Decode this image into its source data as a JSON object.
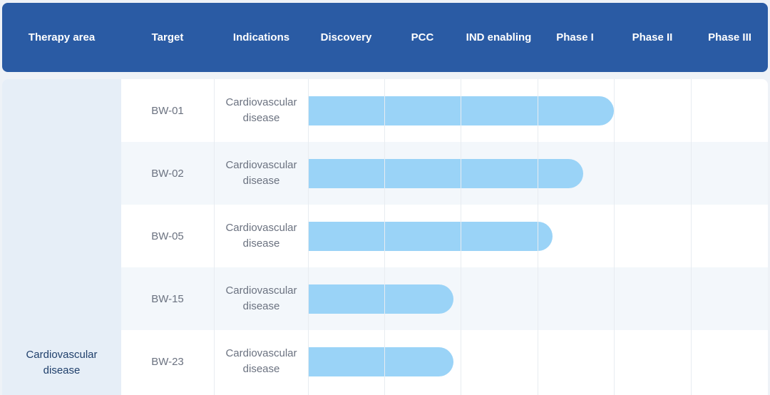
{
  "header": {
    "columns": [
      "Therapy area",
      "Target",
      "Indications",
      "Discovery",
      "PCC",
      "IND enabling",
      "Phase I",
      "Phase II",
      "Phase III"
    ]
  },
  "therapy_area": "Cardiovascular\ndisease",
  "colors": {
    "header_bg": "#2a5ba4",
    "bar": "#9ad3f7",
    "area_bg": "#e6eef7"
  },
  "stages": [
    "Discovery",
    "PCC",
    "IND enabling",
    "Phase I",
    "Phase II",
    "Phase III"
  ],
  "rows": [
    {
      "target": "BW-01",
      "indication": "Cardiovascular disease",
      "progress_stages": 4.0
    },
    {
      "target": "BW-02",
      "indication": "Cardiovascular disease",
      "progress_stages": 3.6
    },
    {
      "target": "BW-05",
      "indication": "Cardiovascular disease",
      "progress_stages": 3.2
    },
    {
      "target": "BW-15",
      "indication": "Cardiovascular disease",
      "progress_stages": 1.9
    },
    {
      "target": "BW-23",
      "indication": "Cardiovascular disease",
      "progress_stages": 1.9
    }
  ]
}
